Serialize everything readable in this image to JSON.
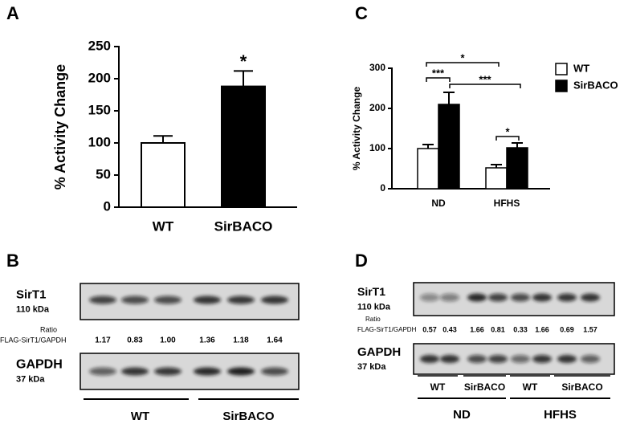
{
  "chart_data": [
    {
      "type": "bar",
      "panel": "A",
      "ylabel": "% Activity Change",
      "categories": [
        "WT",
        "SirBACO"
      ],
      "values": [
        100,
        188
      ],
      "errors": [
        11,
        24
      ],
      "colors": [
        "#ffffff",
        "#000000"
      ],
      "ylim": [
        0,
        250
      ],
      "yticks": [
        0,
        50,
        100,
        150,
        200,
        250
      ],
      "annotations": [
        "",
        "*"
      ]
    },
    {
      "type": "grouped-bar",
      "panel": "C",
      "ylabel": "% Activity Change",
      "categories": [
        "ND",
        "HFHS"
      ],
      "series": [
        {
          "name": "WT",
          "color": "#ffffff",
          "values": [
            100,
            52
          ],
          "errors": [
            10,
            8
          ]
        },
        {
          "name": "SirBACO",
          "color": "#000000",
          "values": [
            210,
            102
          ],
          "errors": [
            30,
            12
          ]
        }
      ],
      "ylim": [
        0,
        300
      ],
      "yticks": [
        0,
        100,
        200,
        300
      ],
      "legend": "right",
      "significance": [
        "*",
        "***",
        "***",
        "*"
      ]
    }
  ],
  "blots": [
    {
      "panel": "B",
      "top_label": "SirT1",
      "top_sublabel": "110 kDa",
      "ratio_label": "Ratio",
      "ratio_sublabel": "FLAG-SirT1/GAPDH",
      "ratios": [
        "1.17",
        "0.83",
        "1.00",
        "1.36",
        "1.18",
        "1.64"
      ],
      "bottom_label": "GAPDH",
      "bottom_sublabel": "37 kDa",
      "groups": [
        "WT",
        "SirBACO"
      ]
    },
    {
      "panel": "D",
      "top_label": "SirT1",
      "top_sublabel": "110 kDa",
      "ratio_label": "Ratio",
      "ratio_sublabel": "FLAG-SirT1/GAPDH",
      "ratios": [
        "0.57",
        "0.43",
        "1.66",
        "0.81",
        "0.33",
        "1.66",
        "0.69",
        "1.57"
      ],
      "bottom_label": "GAPDH",
      "bottom_sublabel": "37 kDa",
      "subgroups": [
        "WT",
        "SirBACO",
        "WT",
        "SirBACO"
      ],
      "groups": [
        "ND",
        "HFHS"
      ]
    }
  ]
}
